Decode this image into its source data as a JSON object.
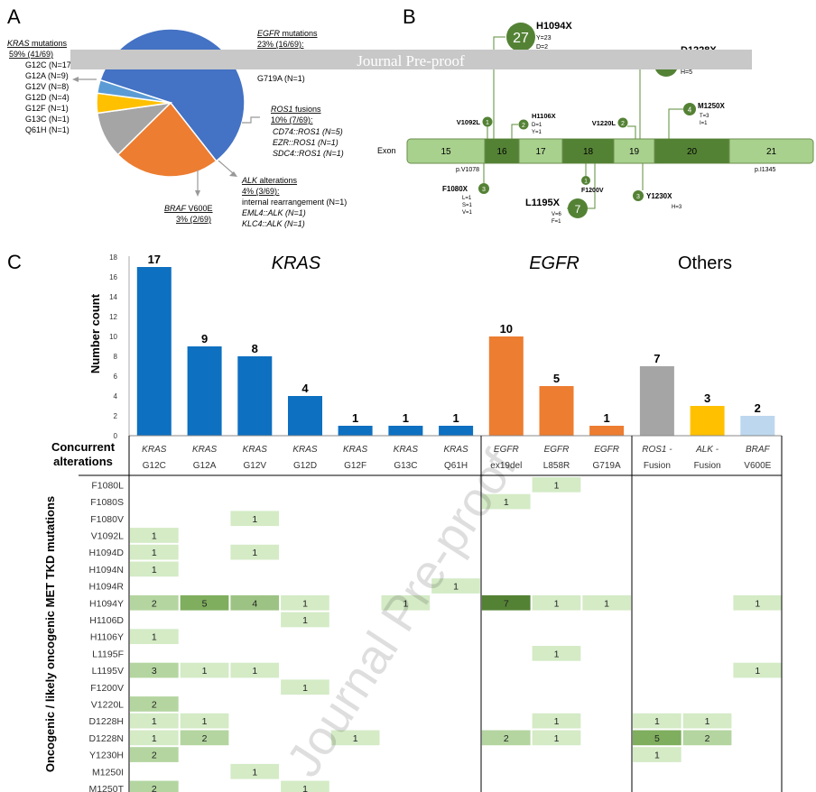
{
  "watermark": {
    "banner": "Journal Pre-proof",
    "diagonal": "Journal Pre-proof"
  },
  "panel_letters": {
    "a": "A",
    "b": "B",
    "c": "C"
  },
  "chart_data": [
    {
      "type": "pie",
      "panel": "A",
      "slices": [
        {
          "name": "KRAS",
          "value": 41,
          "color": "#4472C4"
        },
        {
          "name": "EGFR",
          "value": 16,
          "color": "#ED7D31"
        },
        {
          "name": "ROS1",
          "value": 7,
          "color": "#A5A5A5"
        },
        {
          "name": "ALK",
          "value": 3,
          "color": "#FFC000"
        },
        {
          "name": "BRAF",
          "value": 2,
          "color": "#5B9BD5"
        }
      ],
      "labels": {
        "kras": {
          "gene": "KRAS",
          "title_rest": " mutations",
          "pct": "59% (41/69)",
          "items": [
            "G12C (N=17",
            "G12A (N=9)",
            "G12V (N=8)",
            "G12D (N=4)",
            "G12F (N=1)",
            "G13C (N=1)",
            "Q61H (N=1)"
          ]
        },
        "egfr": {
          "gene": "EGFR",
          "title_rest": " mutations",
          "pct": "23% (16/69):",
          "items": [
            "G719A (N=1)"
          ]
        },
        "ros1": {
          "gene": "ROS1",
          "title_rest": " fusions",
          "pct": "10% (7/69):",
          "items": [
            "CD74::ROS1 (N=5)",
            "EZR::ROS1 (N=1)",
            "SDC4::ROS1 (N=1)"
          ]
        },
        "alk": {
          "gene": "ALK",
          "title_rest": " alterations",
          "pct": "4% (3/69):",
          "items": [
            "internal rearrangement (N=1)",
            "EML4::ALK (N=1)",
            "KLC4::ALK (N=1)"
          ]
        },
        "braf": {
          "gene": "BRAF",
          "title_rest": " V600E",
          "pct": "3% (2/69)"
        }
      }
    },
    {
      "type": "diagram",
      "panel": "B",
      "exon_label": "Exon",
      "exons": [
        "15",
        "16",
        "17",
        "18",
        "19",
        "20",
        "21"
      ],
      "range_labels": {
        "start": "p.V1078",
        "end": "p.I1345"
      },
      "mutations": [
        {
          "name": "H1094X",
          "count": "27",
          "sub": [
            "Y=23",
            "D=2"
          ]
        },
        {
          "name": "D1228X",
          "count": "",
          "sub": [
            "H=5"
          ]
        },
        {
          "name": "V1092L",
          "count": "1",
          "sub": []
        },
        {
          "name": "H1106X",
          "count": "2",
          "sub": [
            "D=1",
            "Y=1"
          ]
        },
        {
          "name": "V1220L",
          "count": "2",
          "sub": []
        },
        {
          "name": "M1250X",
          "count": "4",
          "sub": [
            "T=3",
            "I=1"
          ]
        },
        {
          "name": "F1080X",
          "count": "3",
          "sub": [
            "L=1",
            "S=1",
            "V=1"
          ]
        },
        {
          "name": "L1195X",
          "count": "7",
          "sub": [
            "V=6",
            "F=1"
          ]
        },
        {
          "name": "F1200V",
          "count": "1",
          "sub": []
        },
        {
          "name": "Y1230X",
          "count": "3",
          "sub": [
            "H=3"
          ]
        }
      ]
    },
    {
      "type": "bar",
      "panel": "C",
      "ylabel": "Number count",
      "ylim": [
        0,
        18
      ],
      "yticks": [
        "0",
        "2",
        "4",
        "6",
        "8",
        "10",
        "12",
        "14",
        "16",
        "18"
      ],
      "group_titles": {
        "kras": "KRAS",
        "egfr": "EGFR",
        "others": "Others"
      },
      "categories": [
        {
          "gene": "KRAS",
          "variant": "G12C",
          "value": 17,
          "color": "#0E70C0"
        },
        {
          "gene": "KRAS",
          "variant": "G12A",
          "value": 9,
          "color": "#0E70C0"
        },
        {
          "gene": "KRAS",
          "variant": "G12V",
          "value": 8,
          "color": "#0E70C0"
        },
        {
          "gene": "KRAS",
          "variant": "G12D",
          "value": 4,
          "color": "#0E70C0"
        },
        {
          "gene": "KRAS",
          "variant": "G12F",
          "value": 1,
          "color": "#0E70C0"
        },
        {
          "gene": "KRAS",
          "variant": "G13C",
          "value": 1,
          "color": "#0E70C0"
        },
        {
          "gene": "KRAS",
          "variant": "Q61H",
          "value": 1,
          "color": "#0E70C0"
        },
        {
          "gene": "EGFR",
          "variant": "ex19del",
          "value": 10,
          "color": "#ED7D31"
        },
        {
          "gene": "EGFR",
          "variant": "L858R",
          "value": 5,
          "color": "#ED7D31"
        },
        {
          "gene": "EGFR",
          "variant": "G719A",
          "value": 1,
          "color": "#ED7D31"
        },
        {
          "gene": "ROS1 -",
          "variant": "Fusion",
          "value": 7,
          "color": "#A5A5A5"
        },
        {
          "gene": "ALK -",
          "variant": "Fusion",
          "value": 3,
          "color": "#FFC000"
        },
        {
          "gene": "BRAF",
          "variant": "V600E",
          "value": 2,
          "color": "#BDD7EE"
        }
      ]
    },
    {
      "type": "heatmap",
      "panel": "C",
      "corner_label": [
        "Concurrent",
        "alterations"
      ],
      "ylabel": "Oncogenic / likely oncogenic MET TKD mutations",
      "rows": [
        "F1080L",
        "F1080S",
        "F1080V",
        "V1092L",
        "H1094D",
        "H1094N",
        "H1094R",
        "H1094Y",
        "H1106D",
        "H1106Y",
        "L1195F",
        "L1195V",
        "F1200V",
        "V1220L",
        "D1228H",
        "D1228N",
        "Y1230H",
        "M1250I",
        "M1250T"
      ],
      "values": [
        [
          0,
          0,
          0,
          0,
          0,
          0,
          0,
          0,
          1,
          0,
          0,
          0,
          0
        ],
        [
          0,
          0,
          0,
          0,
          0,
          0,
          0,
          1,
          0,
          0,
          0,
          0,
          0
        ],
        [
          0,
          0,
          1,
          0,
          0,
          0,
          0,
          0,
          0,
          0,
          0,
          0,
          0
        ],
        [
          1,
          0,
          0,
          0,
          0,
          0,
          0,
          0,
          0,
          0,
          0,
          0,
          0
        ],
        [
          1,
          0,
          1,
          0,
          0,
          0,
          0,
          0,
          0,
          0,
          0,
          0,
          0
        ],
        [
          1,
          0,
          0,
          0,
          0,
          0,
          0,
          0,
          0,
          0,
          0,
          0,
          0
        ],
        [
          0,
          0,
          0,
          0,
          0,
          0,
          1,
          0,
          0,
          0,
          0,
          0,
          0
        ],
        [
          2,
          5,
          4,
          1,
          0,
          1,
          0,
          7,
          1,
          1,
          0,
          0,
          1
        ],
        [
          0,
          0,
          0,
          1,
          0,
          0,
          0,
          0,
          0,
          0,
          0,
          0,
          0
        ],
        [
          1,
          0,
          0,
          0,
          0,
          0,
          0,
          0,
          0,
          0,
          0,
          0,
          0
        ],
        [
          0,
          0,
          0,
          0,
          0,
          0,
          0,
          0,
          1,
          0,
          0,
          0,
          0
        ],
        [
          3,
          1,
          1,
          0,
          0,
          0,
          0,
          0,
          0,
          0,
          0,
          0,
          1
        ],
        [
          0,
          0,
          0,
          1,
          0,
          0,
          0,
          0,
          0,
          0,
          0,
          0,
          0
        ],
        [
          2,
          0,
          0,
          0,
          0,
          0,
          0,
          0,
          0,
          0,
          0,
          0,
          0
        ],
        [
          1,
          1,
          0,
          0,
          0,
          0,
          0,
          0,
          1,
          0,
          1,
          1,
          0
        ],
        [
          1,
          2,
          0,
          0,
          1,
          0,
          0,
          2,
          1,
          0,
          5,
          2,
          0
        ],
        [
          2,
          0,
          0,
          0,
          0,
          0,
          0,
          0,
          0,
          0,
          1,
          0,
          0
        ],
        [
          0,
          0,
          1,
          0,
          0,
          0,
          0,
          0,
          0,
          0,
          0,
          0,
          0
        ],
        [
          2,
          0,
          0,
          1,
          0,
          0,
          0,
          0,
          0,
          0,
          0,
          0,
          0
        ]
      ]
    }
  ]
}
